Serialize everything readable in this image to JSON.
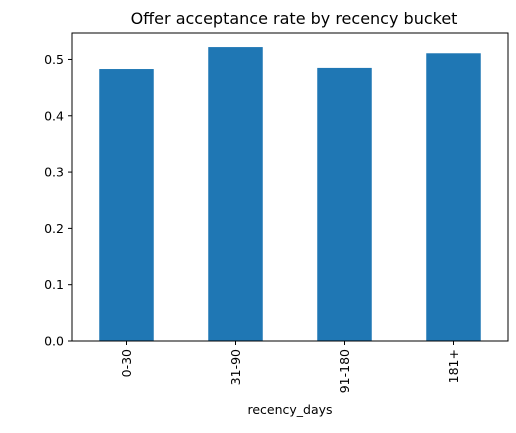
{
  "chart_data": {
    "type": "bar",
    "title": "Offer acceptance rate by recency bucket",
    "xlabel": "recency_days",
    "ylabel": "",
    "categories": [
      "0-30",
      "31-90",
      "91-180",
      "181+"
    ],
    "values": [
      0.483,
      0.522,
      0.485,
      0.511
    ],
    "ylim": [
      0,
      0.547
    ],
    "yticks": [
      0.0,
      0.1,
      0.2,
      0.3,
      0.4,
      0.5
    ],
    "ytick_labels": [
      "0.0",
      "0.1",
      "0.2",
      "0.3",
      "0.4",
      "0.5"
    ],
    "grid": false,
    "legend": "none",
    "bar_color": "#1f77b4"
  }
}
